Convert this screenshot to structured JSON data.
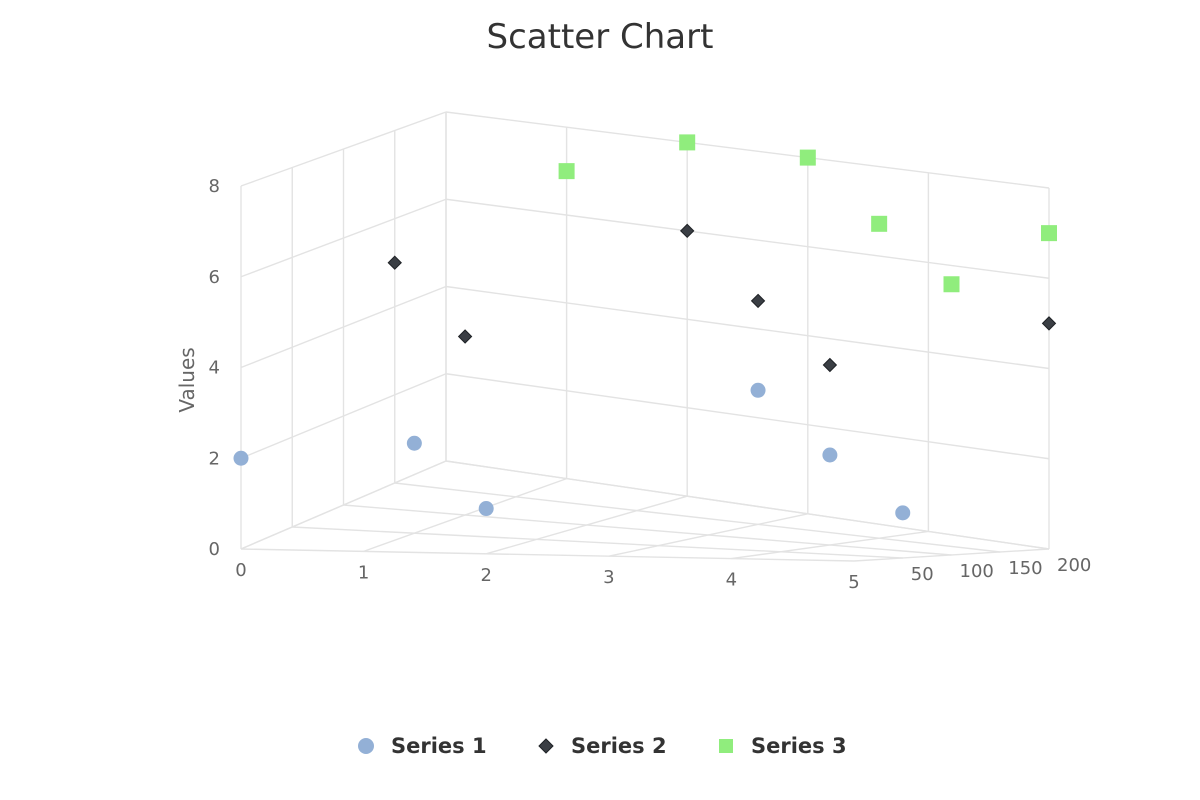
{
  "chart_data": {
    "type": "scatter",
    "title": "Scatter Chart",
    "ylabel": "Values",
    "xlabel": "",
    "zlabel": "",
    "x_ticks": [
      "0",
      "1",
      "2",
      "3",
      "4",
      "5"
    ],
    "y_ticks": [
      "0",
      "2",
      "4",
      "6",
      "8"
    ],
    "z_ticks": [
      "50",
      "100",
      "150",
      "200"
    ],
    "xlim": [
      0,
      5
    ],
    "ylim": [
      0,
      8
    ],
    "zlim": [
      0,
      200
    ],
    "grid": true,
    "legend_position": "bottom-center",
    "series": [
      {
        "name": "Series 1",
        "marker": "circle",
        "color": "#93b0d6",
        "points": [
          {
            "x": 0,
            "y": 2,
            "z": 0
          },
          {
            "x": 1,
            "y": 2,
            "z": 50
          },
          {
            "x": 2,
            "y": 1,
            "z": 0
          },
          {
            "x": 3,
            "y": 3,
            "z": 150
          },
          {
            "x": 4,
            "y": 2,
            "z": 100
          },
          {
            "x": 5,
            "y": 1,
            "z": 50
          }
        ]
      },
      {
        "name": "Series 2",
        "marker": "diamond",
        "color": "#3a3e44",
        "points": [
          {
            "x": 0,
            "y": 5,
            "z": 150
          },
          {
            "x": 1,
            "y": 4,
            "z": 100
          },
          {
            "x": 2,
            "y": 6,
            "z": 200
          },
          {
            "x": 3,
            "y": 5,
            "z": 150
          },
          {
            "x": 4,
            "y": 4,
            "z": 100
          },
          {
            "x": 5,
            "y": 5,
            "z": 200
          }
        ]
      },
      {
        "name": "Series 3",
        "marker": "square",
        "color": "#90ed7d",
        "points": [
          {
            "x": 1,
            "y": 7,
            "z": 200
          },
          {
            "x": 2,
            "y": 8,
            "z": 200
          },
          {
            "x": 3,
            "y": 8,
            "z": 200
          },
          {
            "x": 4,
            "y": 7,
            "z": 150
          },
          {
            "x": 5,
            "y": 7,
            "z": 200
          },
          {
            "x": 5,
            "y": 6,
            "z": 100
          }
        ]
      }
    ]
  }
}
